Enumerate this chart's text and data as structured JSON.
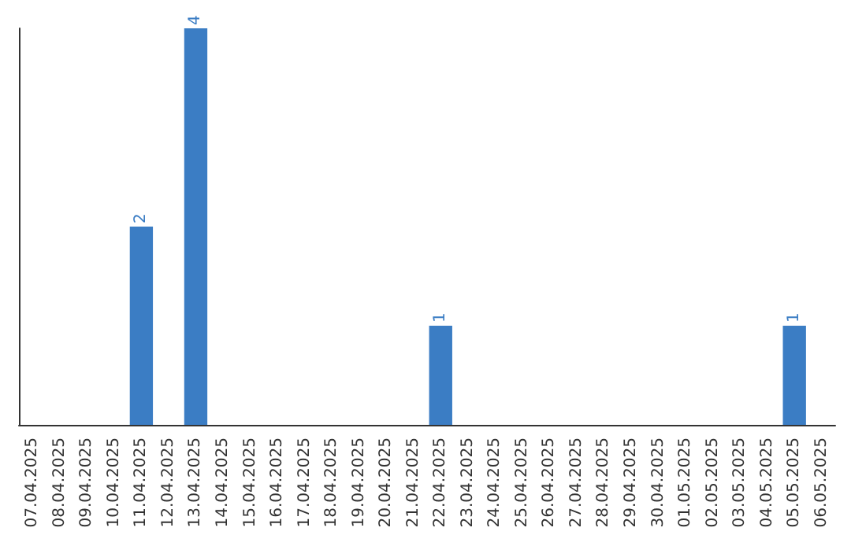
{
  "chart_data": {
    "type": "bar",
    "categories": [
      "07.04.2025",
      "08.04.2025",
      "09.04.2025",
      "10.04.2025",
      "11.04.2025",
      "12.04.2025",
      "13.04.2025",
      "14.04.2025",
      "15.04.2025",
      "16.04.2025",
      "17.04.2025",
      "18.04.2025",
      "19.04.2025",
      "20.04.2025",
      "21.04.2025",
      "22.04.2025",
      "23.04.2025",
      "24.04.2025",
      "25.04.2025",
      "26.04.2025",
      "27.04.2025",
      "28.04.2025",
      "29.04.2025",
      "30.04.2025",
      "01.05.2025",
      "02.05.2025",
      "03.05.2025",
      "04.05.2025",
      "05.05.2025",
      "06.05.2025"
    ],
    "values": [
      0,
      0,
      0,
      0,
      2,
      0,
      4,
      0,
      0,
      0,
      0,
      0,
      0,
      0,
      0,
      1,
      0,
      0,
      0,
      0,
      0,
      0,
      0,
      0,
      0,
      0,
      0,
      0,
      1,
      0
    ],
    "value_labels": [
      null,
      null,
      null,
      null,
      "2",
      null,
      "4",
      null,
      null,
      null,
      null,
      null,
      null,
      null,
      null,
      "1",
      null,
      null,
      null,
      null,
      null,
      null,
      null,
      null,
      null,
      null,
      null,
      null,
      "1",
      null
    ],
    "color": "#3b7dc4",
    "tick_labels": "x"
  }
}
